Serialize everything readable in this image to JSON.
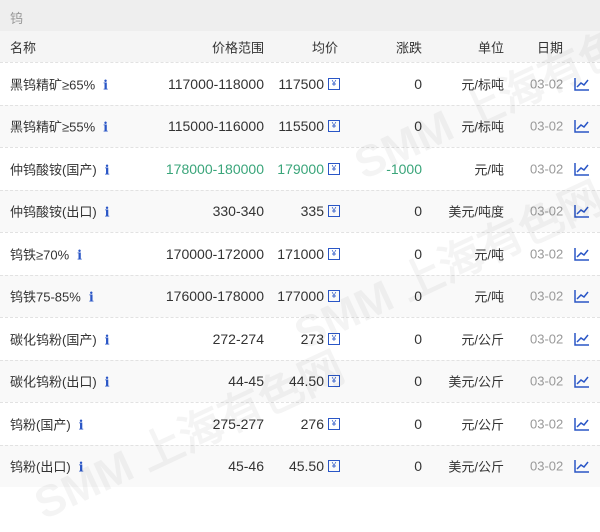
{
  "title": "钨",
  "watermark": "SMM 上海有色网",
  "headers": {
    "name": "名称",
    "range": "价格范围",
    "avg": "均价",
    "change": "涨跌",
    "unit": "单位",
    "date": "日期"
  },
  "colors": {
    "up_down": "#3aa57a",
    "icon": "#2a56c6"
  },
  "rows": [
    {
      "name": "黑钨精矿≥65%",
      "range": "117000-118000",
      "avg": "117500",
      "change": "0",
      "unit": "元/标吨",
      "date": "03-02"
    },
    {
      "name": "黑钨精矿≥55%",
      "range": "115000-116000",
      "avg": "115500",
      "change": "0",
      "unit": "元/标吨",
      "date": "03-02"
    },
    {
      "name": "仲钨酸铵(国产)",
      "range": "178000-180000",
      "avg": "179000",
      "change": "-1000",
      "unit": "元/吨",
      "date": "03-02"
    },
    {
      "name": "仲钨酸铵(出口)",
      "range": "330-340",
      "avg": "335",
      "change": "0",
      "unit": "美元/吨度",
      "date": "03-02"
    },
    {
      "name": "钨铁≥70%",
      "range": "170000-172000",
      "avg": "171000",
      "change": "0",
      "unit": "元/吨",
      "date": "03-02"
    },
    {
      "name": "钨铁75-85%",
      "range": "176000-178000",
      "avg": "177000",
      "change": "0",
      "unit": "元/吨",
      "date": "03-02"
    },
    {
      "name": "碳化钨粉(国产)",
      "range": "272-274",
      "avg": "273",
      "change": "0",
      "unit": "元/公斤",
      "date": "03-02"
    },
    {
      "name": "碳化钨粉(出口)",
      "range": "44-45",
      "avg": "44.50",
      "change": "0",
      "unit": "美元/公斤",
      "date": "03-02"
    },
    {
      "name": "钨粉(国产)",
      "range": "275-277",
      "avg": "276",
      "change": "0",
      "unit": "元/公斤",
      "date": "03-02"
    },
    {
      "name": "钨粉(出口)",
      "range": "45-46",
      "avg": "45.50",
      "change": "0",
      "unit": "美元/公斤",
      "date": "03-02"
    }
  ]
}
